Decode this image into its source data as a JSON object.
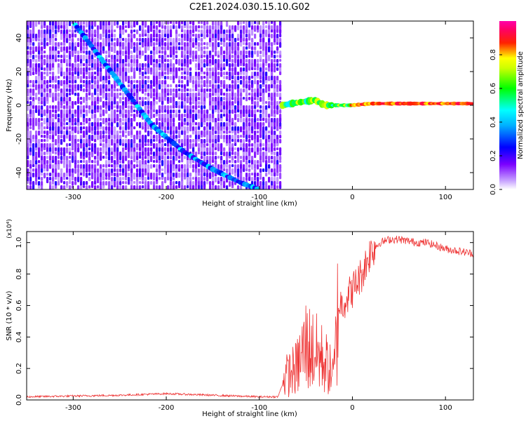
{
  "title": "C2E1.2024.030.15.10.G02",
  "chart_data": [
    {
      "type": "heatmap",
      "xlabel": "Height of straight line (km)",
      "ylabel": "Frequency (Hz)",
      "xlim": [
        -350,
        130
      ],
      "ylim": [
        -50,
        50
      ],
      "x_ticks": [
        -300,
        -200,
        -100,
        0,
        100
      ],
      "y_ticks": [
        -40,
        -20,
        0,
        20,
        40
      ],
      "x_tick_labels": [
        "-300",
        "-200",
        "-100",
        "0",
        "100"
      ],
      "y_tick_labels": [
        "-40",
        "-20",
        "0",
        "20",
        "40"
      ],
      "colorbar": {
        "label": "Normalized spectral amplitude",
        "range": [
          0.0,
          1.0
        ],
        "ticks": [
          0.0,
          0.2,
          0.4,
          0.6,
          0.8
        ],
        "tick_labels": [
          "0.0",
          "0.2",
          "0.4",
          "0.6",
          "0.8"
        ],
        "colormap": [
          "#ffffff",
          "#5500ff",
          "#0000ff",
          "#00ffff",
          "#00ff00",
          "#ffff00",
          "#ff0000",
          "#ff00aa"
        ]
      },
      "noise_region": {
        "x_from": -350,
        "x_to": -77,
        "level": 0.25
      },
      "features": [
        {
          "name": "diagonal trace",
          "points": [
            [
              -298,
              48
            ],
            [
              -265,
              24
            ],
            [
              -240,
              6
            ],
            [
              -215,
              -12
            ],
            [
              -180,
              -28
            ],
            [
              -150,
              -38
            ],
            [
              -120,
              -46
            ],
            [
              -100,
              -50
            ]
          ],
          "amplitude": 0.3
        },
        {
          "name": "carrier line",
          "points": [
            [
              -75,
              0
            ],
            [
              -60,
              1.5
            ],
            [
              -40,
              3
            ],
            [
              -30,
              0
            ],
            [
              -20,
              0
            ],
            [
              0,
              0
            ],
            [
              20,
              1
            ],
            [
              60,
              1
            ],
            [
              100,
              1
            ],
            [
              130,
              1
            ]
          ],
          "amplitude": 0.85
        }
      ]
    },
    {
      "type": "line",
      "xlabel": "Height of straight line (km)",
      "ylabel": "SNR (10 * v/v)",
      "y_scale_label": "(x10⁴)",
      "xlim": [
        -350,
        130
      ],
      "ylim": [
        0,
        1.07
      ],
      "x_ticks": [
        -300,
        -200,
        -100,
        0,
        100
      ],
      "y_ticks": [
        0.0,
        0.2,
        0.4,
        0.6,
        0.8,
        1.0
      ],
      "x_tick_labels": [
        "-300",
        "-200",
        "-100",
        "0",
        "100"
      ],
      "y_tick_labels": [
        "0.0",
        "0.2",
        "0.4",
        "0.6",
        "0.8",
        "1.0"
      ],
      "line_color": "#ee3333",
      "x": [
        -350,
        -300,
        -250,
        -200,
        -150,
        -100,
        -80,
        -72,
        -60,
        -50,
        -40,
        -30,
        -20,
        -15,
        -10,
        0,
        10,
        20,
        30,
        40,
        50,
        60,
        70,
        80,
        90,
        100,
        110,
        120,
        130
      ],
      "y": [
        0.02,
        0.025,
        0.03,
        0.04,
        0.03,
        0.02,
        0.02,
        0.15,
        0.2,
        0.35,
        0.3,
        0.25,
        0.15,
        0.6,
        0.62,
        0.7,
        0.8,
        0.95,
        1.0,
        1.02,
        1.02,
        1.01,
        1.0,
        1.0,
        0.98,
        0.96,
        0.95,
        0.94,
        0.93
      ]
    }
  ]
}
